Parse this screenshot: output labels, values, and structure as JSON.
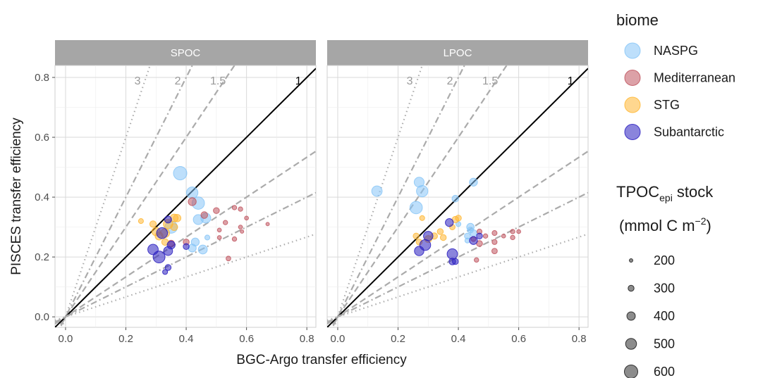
{
  "chart_data": {
    "type": "scatter",
    "facets": [
      "SPOC",
      "LPOC"
    ],
    "xlabel": "BGC-Argo transfer efficiency",
    "ylabel": "PISCES transfer efficiency",
    "xlim": [
      -0.035,
      0.83
    ],
    "ylim": [
      -0.035,
      0.84
    ],
    "x_ticks": [
      0.0,
      0.2,
      0.4,
      0.6,
      0.8
    ],
    "y_ticks": [
      0.0,
      0.2,
      0.4,
      0.6,
      0.8
    ],
    "tick_labels": [
      "0.0",
      "0.2",
      "0.4",
      "0.6",
      "0.8"
    ],
    "grid": true,
    "reference_lines": [
      {
        "label": "3",
        "slope": 3,
        "style": "dotted"
      },
      {
        "label": "2",
        "slope": 2,
        "style": "dotdash"
      },
      {
        "label": "1.5",
        "slope": 1.5,
        "style": "dashed"
      },
      {
        "label": "1",
        "slope": 1,
        "style": "solid"
      },
      {
        "label": "",
        "slope": 0.6667,
        "style": "dashed"
      },
      {
        "label": "",
        "slope": 0.5,
        "style": "dotdash"
      },
      {
        "label": "",
        "slope": 0.3333,
        "style": "dotted"
      }
    ],
    "color_legend": {
      "title": "biome",
      "entries": [
        {
          "name": "NASPG",
          "color": "#87c5f7"
        },
        {
          "name": "Mediterranean",
          "color": "#c0545e"
        },
        {
          "name": "STG",
          "color": "#ffb733"
        },
        {
          "name": "Subantarctic",
          "color": "#2a1fbf"
        }
      ]
    },
    "size_legend": {
      "title_main": "TPOC",
      "title_sub": "epi",
      "title_rest": " stock",
      "unit_open": "(mmol C m",
      "unit_sup": "−2",
      "unit_close": ")",
      "values": [
        200,
        300,
        400,
        500,
        600
      ],
      "labels": [
        "200",
        "300",
        "400",
        "500",
        "600"
      ]
    },
    "series": [
      {
        "name": "NASPG",
        "facet": "SPOC",
        "points": [
          [
            0.38,
            0.48,
            600
          ],
          [
            0.42,
            0.415,
            520
          ],
          [
            0.44,
            0.38,
            560
          ],
          [
            0.35,
            0.3,
            560
          ],
          [
            0.44,
            0.325,
            460
          ],
          [
            0.465,
            0.33,
            460
          ],
          [
            0.43,
            0.25,
            380
          ],
          [
            0.42,
            0.23,
            380
          ],
          [
            0.455,
            0.225,
            420
          ],
          [
            0.47,
            0.265,
            260
          ]
        ]
      },
      {
        "name": "Mediterranean",
        "facet": "SPOC",
        "points": [
          [
            0.42,
            0.385,
            380
          ],
          [
            0.46,
            0.34,
            330
          ],
          [
            0.5,
            0.355,
            300
          ],
          [
            0.56,
            0.365,
            240
          ],
          [
            0.58,
            0.36,
            240
          ],
          [
            0.53,
            0.315,
            240
          ],
          [
            0.6,
            0.33,
            220
          ],
          [
            0.51,
            0.29,
            220
          ],
          [
            0.58,
            0.3,
            220
          ],
          [
            0.56,
            0.26,
            240
          ],
          [
            0.51,
            0.265,
            220
          ],
          [
            0.585,
            0.285,
            200
          ],
          [
            0.67,
            0.31,
            200
          ],
          [
            0.54,
            0.195,
            250
          ],
          [
            0.35,
            0.245,
            330
          ],
          [
            0.4,
            0.25,
            300
          ]
        ]
      },
      {
        "name": "STG",
        "facet": "SPOC",
        "points": [
          [
            0.25,
            0.32,
            260
          ],
          [
            0.29,
            0.31,
            320
          ],
          [
            0.3,
            0.285,
            400
          ],
          [
            0.31,
            0.27,
            380
          ],
          [
            0.34,
            0.31,
            440
          ],
          [
            0.33,
            0.28,
            420
          ],
          [
            0.36,
            0.33,
            380
          ],
          [
            0.37,
            0.33,
            360
          ],
          [
            0.36,
            0.3,
            340
          ],
          [
            0.33,
            0.25,
            330
          ]
        ]
      },
      {
        "name": "Subantarctic",
        "facet": "SPOC",
        "points": [
          [
            0.29,
            0.225,
            480
          ],
          [
            0.31,
            0.2,
            540
          ],
          [
            0.34,
            0.22,
            420
          ],
          [
            0.35,
            0.24,
            380
          ],
          [
            0.32,
            0.28,
            500
          ],
          [
            0.34,
            0.325,
            340
          ],
          [
            0.4,
            0.235,
            300
          ],
          [
            0.34,
            0.165,
            300
          ],
          [
            0.33,
            0.15,
            260
          ]
        ]
      },
      {
        "name": "NASPG",
        "facet": "LPOC",
        "points": [
          [
            0.13,
            0.42,
            480
          ],
          [
            0.27,
            0.45,
            460
          ],
          [
            0.28,
            0.42,
            520
          ],
          [
            0.26,
            0.365,
            560
          ],
          [
            0.39,
            0.395,
            330
          ],
          [
            0.45,
            0.45,
            380
          ],
          [
            0.44,
            0.3,
            360
          ],
          [
            0.45,
            0.28,
            330
          ],
          [
            0.43,
            0.27,
            300
          ],
          [
            0.44,
            0.29,
            300
          ],
          [
            0.4,
            0.31,
            260
          ],
          [
            0.43,
            0.255,
            260
          ]
        ]
      },
      {
        "name": "Mediterranean",
        "facet": "LPOC",
        "points": [
          [
            0.47,
            0.285,
            260
          ],
          [
            0.49,
            0.27,
            240
          ],
          [
            0.52,
            0.28,
            260
          ],
          [
            0.55,
            0.27,
            220
          ],
          [
            0.58,
            0.285,
            240
          ],
          [
            0.6,
            0.285,
            220
          ],
          [
            0.58,
            0.265,
            240
          ],
          [
            0.52,
            0.25,
            260
          ],
          [
            0.47,
            0.245,
            300
          ],
          [
            0.45,
            0.26,
            260
          ],
          [
            0.46,
            0.19,
            240
          ],
          [
            0.52,
            0.22,
            280
          ]
        ]
      },
      {
        "name": "STG",
        "facet": "LPOC",
        "points": [
          [
            0.26,
            0.27,
            300
          ],
          [
            0.27,
            0.25,
            300
          ],
          [
            0.28,
            0.33,
            260
          ],
          [
            0.3,
            0.26,
            340
          ],
          [
            0.32,
            0.27,
            320
          ],
          [
            0.34,
            0.285,
            300
          ],
          [
            0.38,
            0.3,
            280
          ],
          [
            0.39,
            0.325,
            320
          ],
          [
            0.4,
            0.33,
            300
          ],
          [
            0.35,
            0.265,
            300
          ]
        ]
      },
      {
        "name": "Subantarctic",
        "facet": "LPOC",
        "points": [
          [
            0.27,
            0.22,
            440
          ],
          [
            0.29,
            0.24,
            500
          ],
          [
            0.3,
            0.27,
            440
          ],
          [
            0.37,
            0.315,
            380
          ],
          [
            0.38,
            0.21,
            480
          ],
          [
            0.38,
            0.185,
            330
          ],
          [
            0.39,
            0.185,
            300
          ],
          [
            0.45,
            0.255,
            380
          ],
          [
            0.47,
            0.27,
            300
          ]
        ]
      }
    ]
  }
}
